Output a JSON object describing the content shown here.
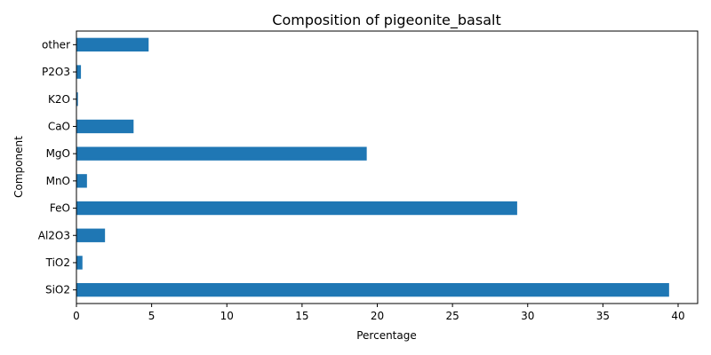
{
  "chart_data": {
    "type": "bar",
    "orientation": "horizontal",
    "title": "Composition of pigeonite_basalt",
    "xlabel": "Percentage",
    "ylabel": "Component",
    "categories": [
      "SiO2",
      "TiO2",
      "Al2O3",
      "FeO",
      "MnO",
      "MgO",
      "CaO",
      "K2O",
      "P2O3",
      "other"
    ],
    "values": [
      39.4,
      0.4,
      1.9,
      29.3,
      0.7,
      19.3,
      3.8,
      0.1,
      0.3,
      4.8
    ],
    "xlim": [
      0,
      41.3
    ],
    "xticks": [
      0,
      5,
      10,
      15,
      20,
      25,
      30,
      35,
      40
    ],
    "bar_color": "#1f77b4",
    "grid": false
  }
}
